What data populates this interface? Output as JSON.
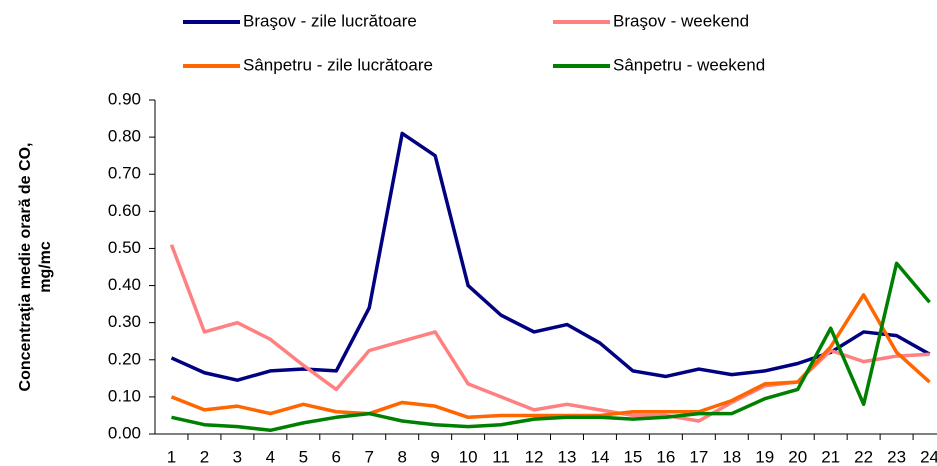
{
  "chart_data": {
    "type": "line",
    "y_label_lines": [
      "Concentraţia medie orară de CO,",
      "mg/mc"
    ],
    "categories": [
      1,
      2,
      3,
      4,
      5,
      6,
      7,
      8,
      9,
      10,
      11,
      12,
      13,
      14,
      15,
      16,
      17,
      18,
      19,
      20,
      21,
      22,
      23,
      24
    ],
    "series": [
      {
        "name": "Braşov - zile lucrătoare",
        "color": "#000080",
        "values": [
          0.205,
          0.165,
          0.145,
          0.17,
          0.175,
          0.17,
          0.34,
          0.81,
          0.75,
          0.4,
          0.32,
          0.275,
          0.295,
          0.245,
          0.17,
          0.155,
          0.175,
          0.16,
          0.17,
          0.19,
          0.22,
          0.275,
          0.265,
          0.215
        ]
      },
      {
        "name": "Braşov - weekend",
        "color": "#ff8080",
        "values": [
          0.51,
          0.275,
          0.3,
          0.255,
          0.185,
          0.12,
          0.225,
          0.25,
          0.275,
          0.135,
          0.1,
          0.065,
          0.08,
          0.065,
          0.05,
          0.05,
          0.035,
          0.085,
          0.13,
          0.14,
          0.225,
          0.195,
          0.21,
          0.215
        ]
      },
      {
        "name": "Sânpetru - zile lucrătoare",
        "color": "#ff6600",
        "values": [
          0.1,
          0.065,
          0.075,
          0.055,
          0.08,
          0.06,
          0.055,
          0.085,
          0.075,
          0.045,
          0.05,
          0.05,
          0.05,
          0.05,
          0.06,
          0.06,
          0.06,
          0.09,
          0.135,
          0.14,
          0.235,
          0.375,
          0.22,
          0.14
        ]
      },
      {
        "name": "Sânpetru - weekend",
        "color": "#008000",
        "values": [
          0.045,
          0.025,
          0.02,
          0.01,
          0.03,
          0.045,
          0.055,
          0.035,
          0.025,
          0.02,
          0.025,
          0.04,
          0.045,
          0.045,
          0.04,
          0.045,
          0.055,
          0.055,
          0.095,
          0.12,
          0.285,
          0.08,
          0.46,
          0.355
        ]
      }
    ],
    "ylim": [
      0,
      0.9
    ],
    "yticks": [
      {
        "value": 0,
        "label": "0.00"
      },
      {
        "value": 0.1,
        "label": "0.10"
      },
      {
        "value": 0.2,
        "label": "0.20"
      },
      {
        "value": 0.3,
        "label": "0.30"
      },
      {
        "value": 0.4,
        "label": "0.40"
      },
      {
        "value": 0.5,
        "label": "0.50"
      },
      {
        "value": 0.6,
        "label": "0.60"
      },
      {
        "value": 0.7,
        "label": "0.70"
      },
      {
        "value": 0.8,
        "label": "0.80"
      },
      {
        "value": 0.9,
        "label": "0.90"
      }
    ],
    "grid": false,
    "legend": "top"
  }
}
